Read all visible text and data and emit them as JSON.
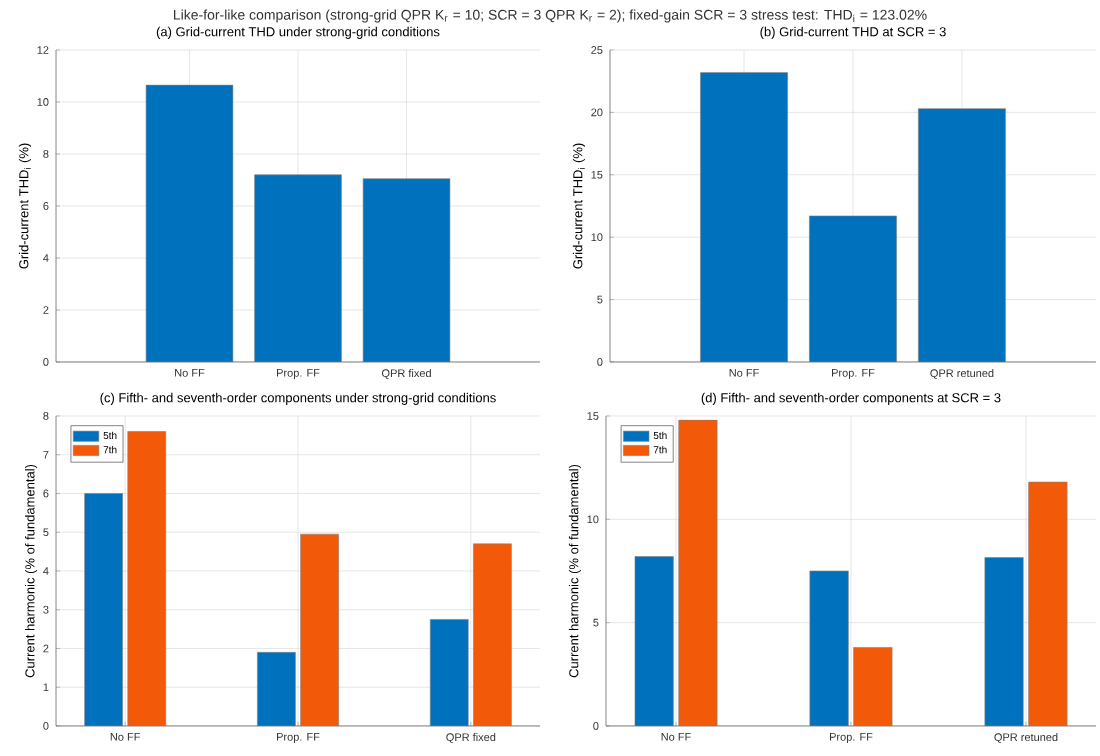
{
  "chart_data": [
    {
      "type": "bar",
      "title": "(a) Grid-current THD under strong-grid conditions",
      "ylabel": "Grid-current THD$_{i}$ (%)",
      "annotations": [
        "Like-for-like comparison (strong-grid QPR K$_{r}$ = 10; SCR = 3 QPR K$_{r}$ = 2); fixed-gain SCR = 3 stress test: THD$_{i}$ = 123.02%"
      ],
      "categories": [
        "No FF",
        "Prop. FF",
        "QPR fixed"
      ],
      "values": [
        10.65,
        7.2,
        7.05
      ],
      "color": "#0072bd",
      "ylim": [
        0,
        12
      ],
      "yticks": [
        0,
        2,
        4,
        6,
        8,
        10,
        12
      ],
      "grid": true
    },
    {
      "type": "bar",
      "title": "(b) Grid-current THD at SCR = 3",
      "ylabel": "Grid-current THD$_{i}$ (%)",
      "categories": [
        "No FF",
        "Prop. FF",
        "QPR retuned"
      ],
      "values": [
        23.2,
        11.7,
        20.3
      ],
      "color": "#0072bd",
      "ylim": [
        0,
        25
      ],
      "yticks": [
        0,
        5,
        10,
        15,
        20,
        25
      ],
      "grid": true
    },
    {
      "type": "bar",
      "title": "(c) Fifth- and seventh-order components under strong-grid conditions",
      "ylabel": "Current harmonic (% of fundamental)",
      "categories": [
        "No FF",
        "Prop. FF",
        "QPR fixed"
      ],
      "series": [
        {
          "name": "5th",
          "color": "#0072bd",
          "values": [
            6.0,
            1.9,
            2.75
          ]
        },
        {
          "name": "7th",
          "color": "#f25a0a",
          "values": [
            7.6,
            4.95,
            4.7
          ]
        }
      ],
      "ylim": [
        0,
        8
      ],
      "yticks": [
        0,
        1,
        2,
        3,
        4,
        5,
        6,
        7,
        8
      ],
      "grid": true,
      "legend": "top left"
    },
    {
      "type": "bar",
      "title": "(d) Fifth- and seventh-order components at SCR = 3",
      "ylabel": "Current harmonic (% of fundamental)",
      "categories": [
        "No FF",
        "Prop. FF",
        "QPR retuned"
      ],
      "series": [
        {
          "name": "5th",
          "color": "#0072bd",
          "values": [
            8.2,
            7.5,
            8.15
          ]
        },
        {
          "name": "7th",
          "color": "#f25a0a",
          "values": [
            14.8,
            3.8,
            11.8
          ]
        }
      ],
      "ylim": [
        0,
        15
      ],
      "yticks": [
        0,
        5,
        10,
        15
      ],
      "grid": true,
      "legend": "top left"
    }
  ]
}
